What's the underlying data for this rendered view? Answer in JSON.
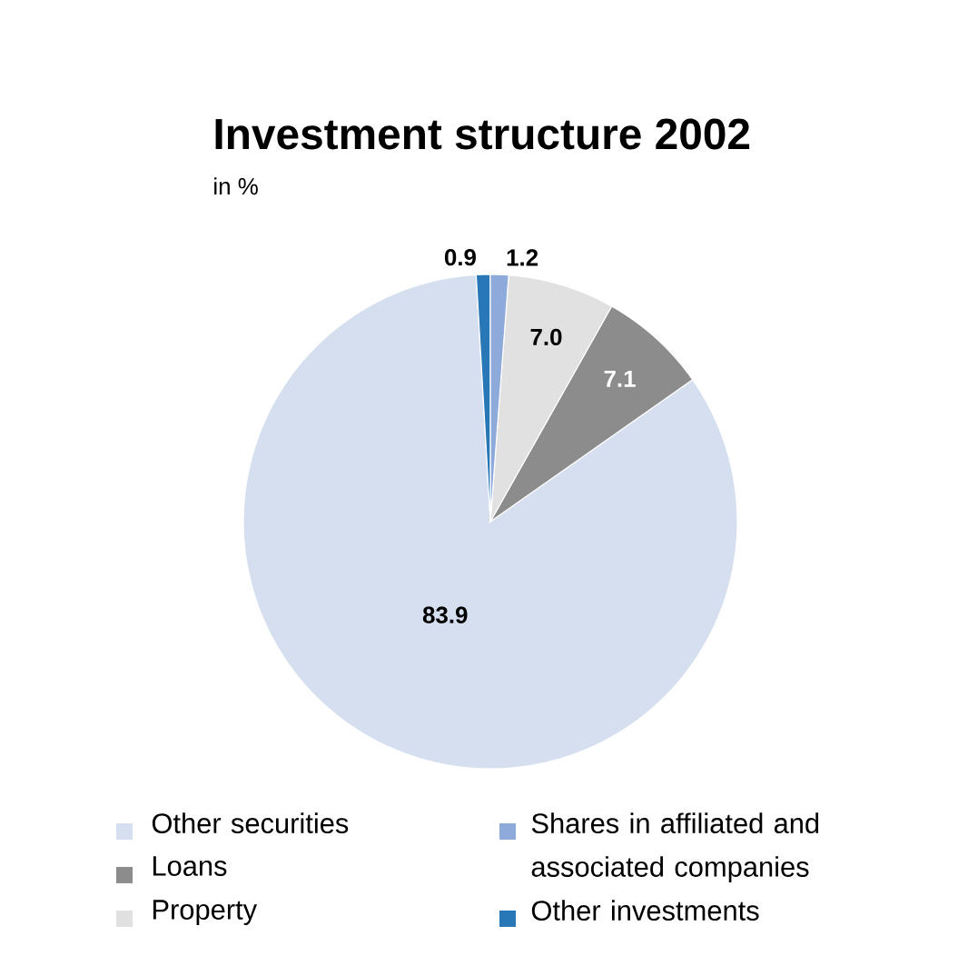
{
  "chart_data": {
    "type": "pie",
    "title": "Investment structure 2002",
    "subtitle": "in %",
    "categories": [
      "Other securities",
      "Loans",
      "Property",
      "Shares in affiliated and associated companies",
      "Other investments"
    ],
    "values": [
      83.9,
      7.1,
      7.0,
      1.2,
      0.9
    ],
    "colors": [
      "#d6dff0",
      "#8c8c8c",
      "#e1e1e1",
      "#8eaadb",
      "#2877b6"
    ],
    "value_labels": [
      "83.9",
      "7.1",
      "7.0",
      "1.2",
      "0.9"
    ],
    "legend": "bottom"
  }
}
